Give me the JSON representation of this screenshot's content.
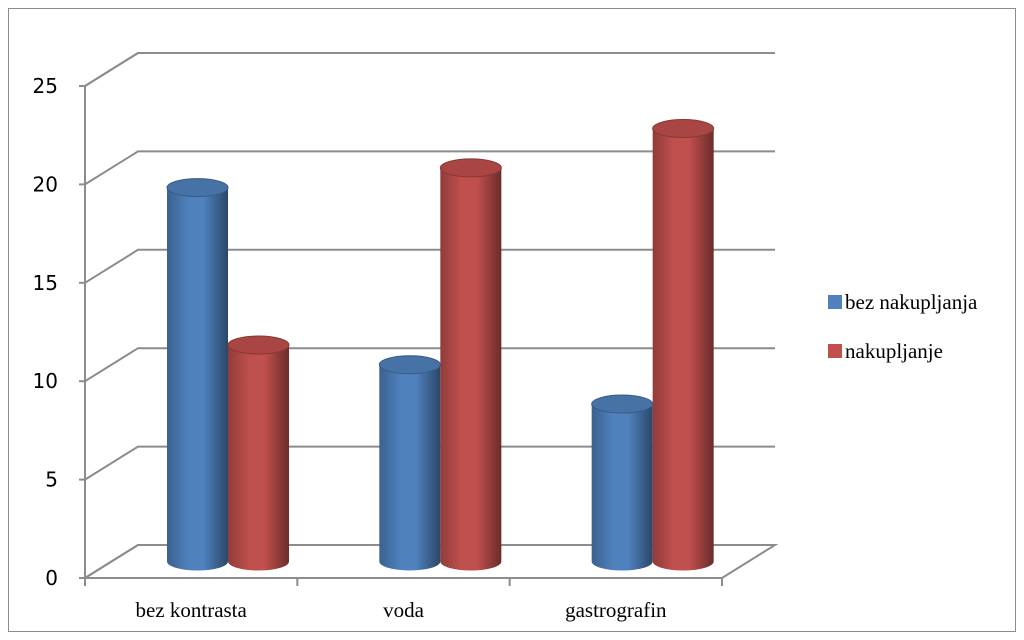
{
  "chart_data": {
    "type": "bar",
    "style": "3d-cylinder",
    "title": "",
    "xlabel": "",
    "ylabel": "",
    "categories": [
      "bez kontrasta",
      "voda",
      "gastrografin"
    ],
    "series": [
      {
        "name": "bez nakupljanja",
        "values": [
          19,
          10,
          8
        ],
        "color": "#4f81bd"
      },
      {
        "name": "nakupljanje",
        "values": [
          11,
          20,
          22
        ],
        "color": "#c0504d"
      }
    ],
    "ylim": [
      0,
      25
    ],
    "yticks": [
      "0",
      "5",
      "10",
      "15",
      "20",
      "25"
    ],
    "grid": true,
    "legend_position": "right"
  }
}
